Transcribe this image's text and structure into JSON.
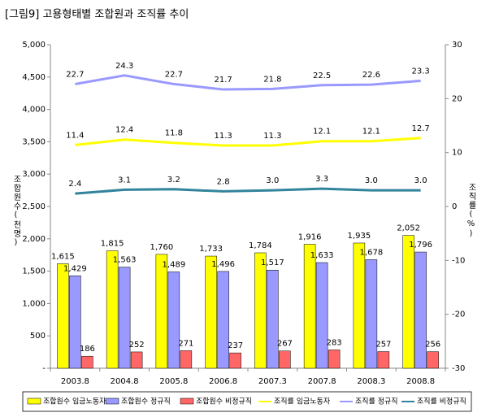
{
  "chart_data": {
    "type": "bar",
    "title": "[그림9] 고용형태별 조합원과 조직률 추이",
    "y_label": "조합원수(천명)",
    "y2_label": "조직률(%)",
    "categories": [
      "2003.8",
      "2004.8",
      "2005.8",
      "2006.8",
      "2007.3",
      "2007.8",
      "2008.3",
      "2008.8"
    ],
    "ylim": [
      0,
      5000
    ],
    "yticks": [
      {
        "value": 0,
        "label": "-"
      },
      500,
      {
        "value": 1000,
        "label": "1,000"
      },
      {
        "value": 1500,
        "label": "1,500"
      },
      {
        "value": 2000,
        "label": "2,000"
      },
      {
        "value": 2500,
        "label": "2,500"
      },
      {
        "value": 3000,
        "label": "3,000"
      },
      {
        "value": 3500,
        "label": "3,500"
      },
      {
        "value": 4000,
        "label": "4,000"
      },
      {
        "value": 4500,
        "label": "4,500"
      },
      {
        "value": 5000,
        "label": "5,000"
      }
    ],
    "y2lim": [
      -30,
      30
    ],
    "y2ticks": [
      -30,
      -20,
      -10,
      0,
      10,
      20,
      30
    ],
    "series": [
      {
        "name": "조합원수 임금노동자",
        "type": "bar",
        "color": "#ffff00",
        "values": [
          1615,
          1815,
          1760,
          1733,
          1784,
          1916,
          1935,
          2052
        ],
        "value_labels": [
          "1,615",
          "1,815",
          "1,760",
          "1,733",
          "1,784",
          "1,916",
          "1,935",
          "2,052"
        ]
      },
      {
        "name": "조합원수 정규직",
        "type": "bar",
        "color": "#9999ff",
        "values": [
          1429,
          1563,
          1489,
          1496,
          1517,
          1633,
          1678,
          1796
        ],
        "value_labels": [
          "1,429",
          "1,563",
          "1,489",
          "1,496",
          "1,517",
          "1,633",
          "1,678",
          "1,796"
        ]
      },
      {
        "name": "조합원수 비정규직",
        "type": "bar",
        "color": "#ff6666",
        "values": [
          186,
          252,
          271,
          237,
          267,
          283,
          257,
          256
        ]
      },
      {
        "name": "조직률 임금노동자",
        "type": "line",
        "axis": "y2",
        "color": "#ffff00",
        "values": [
          11.4,
          12.4,
          11.8,
          11.3,
          11.3,
          12.1,
          12.1,
          12.7
        ],
        "value_labels": [
          "11.4",
          "12.4",
          "11.8",
          "11.3",
          "11.3",
          "12.1",
          "12.1",
          "12.7"
        ]
      },
      {
        "name": "조직률 정규직",
        "type": "line",
        "axis": "y2",
        "color": "#9999ff",
        "values": [
          22.7,
          24.3,
          22.7,
          21.7,
          21.8,
          22.5,
          22.6,
          23.3
        ],
        "value_labels": [
          "22.7",
          "24.3",
          "22.7",
          "21.7",
          "21.8",
          "22.5",
          "22.6",
          "23.3"
        ]
      },
      {
        "name": "조직률 비정규직",
        "type": "line",
        "axis": "y2",
        "color": "#31849b",
        "values": [
          2.4,
          3.1,
          3.2,
          2.8,
          3.0,
          3.3,
          3.0,
          3.0
        ],
        "value_labels": [
          "2.4",
          "3.1",
          "3.2",
          "2.8",
          "3.0",
          "3.3",
          "3.0",
          "3.0"
        ]
      }
    ]
  }
}
